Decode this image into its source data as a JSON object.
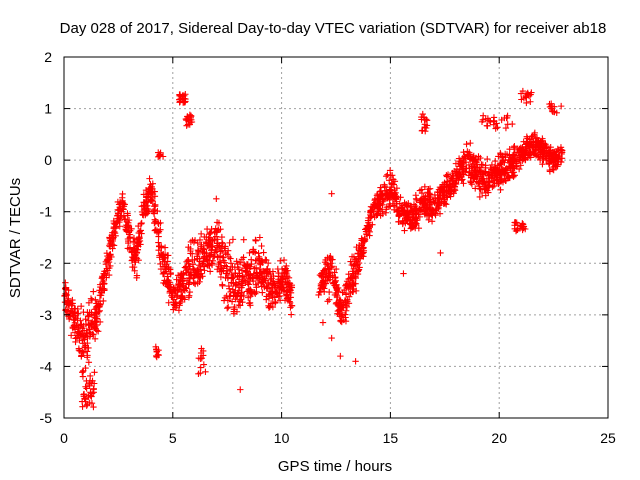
{
  "chart_data": {
    "type": "scatter",
    "title": "Day 028 of 2017, Sidereal Day-to-day VTEC variation (SDTVAR) for receiver ab18",
    "xlabel": "GPS time / hours",
    "ylabel": "SDTVAR / TECUs",
    "xlim": [
      0,
      25
    ],
    "ylim": [
      -5,
      2
    ],
    "xticks": [
      0,
      5,
      10,
      15,
      20,
      25
    ],
    "yticks": [
      -5,
      -4,
      -3,
      -2,
      -1,
      0,
      1,
      2
    ],
    "grid": true,
    "marker": "+",
    "color": "#ff0000",
    "series": [
      {
        "name": "SDTVAR",
        "trend_x": [
          0.0,
          0.3,
          0.6,
          0.9,
          1.2,
          1.5,
          1.8,
          2.1,
          2.4,
          2.7,
          3.0,
          3.3,
          3.6,
          4.0,
          4.3,
          4.6,
          5.0,
          5.4,
          5.8,
          6.2,
          6.6,
          7.0,
          7.5,
          8.0,
          8.5,
          9.0,
          9.5,
          10.0,
          10.5,
          11.8,
          12.3,
          12.7,
          13.0,
          13.5,
          14.0,
          14.5,
          15.0,
          15.5,
          16.0,
          16.5,
          17.0,
          17.5,
          18.0,
          18.5,
          19.0,
          19.5,
          20.0,
          20.5,
          21.0,
          21.5,
          22.0,
          22.5,
          22.9
        ],
        "trend_y": [
          -2.6,
          -3.0,
          -3.2,
          -3.4,
          -3.3,
          -3.0,
          -2.4,
          -1.8,
          -1.2,
          -0.8,
          -1.5,
          -2.0,
          -1.0,
          -0.6,
          -1.4,
          -2.0,
          -2.7,
          -2.5,
          -2.2,
          -2.0,
          -1.8,
          -1.6,
          -2.3,
          -2.5,
          -2.2,
          -2.1,
          -2.5,
          -2.3,
          -2.6,
          -2.4,
          -2.0,
          -3.0,
          -2.6,
          -2.0,
          -1.2,
          -0.8,
          -0.6,
          -1.0,
          -1.1,
          -0.8,
          -0.9,
          -0.6,
          -0.4,
          0.0,
          -0.3,
          -0.4,
          -0.2,
          -0.1,
          0.1,
          0.3,
          0.2,
          0.0,
          0.1
        ],
        "spread": [
          0.45,
          0.5,
          0.55,
          0.8,
          0.9,
          0.6,
          0.5,
          0.5,
          0.4,
          0.3,
          0.5,
          0.6,
          0.4,
          0.4,
          0.7,
          0.6,
          0.5,
          0.6,
          0.8,
          0.8,
          0.7,
          0.7,
          1.0,
          1.0,
          0.9,
          0.7,
          0.7,
          0.6,
          0.6,
          0.4,
          0.5,
          0.6,
          0.6,
          0.5,
          0.4,
          0.4,
          0.5,
          0.5,
          0.4,
          0.5,
          0.4,
          0.4,
          0.4,
          0.5,
          0.5,
          0.5,
          0.5,
          0.4,
          0.4,
          0.4,
          0.4,
          0.3,
          0.3
        ],
        "clusters": [
          {
            "x": [
              0.8,
              1.4
            ],
            "y": [
              -4.8,
              -4.0
            ],
            "n": 40
          },
          {
            "x": [
              5.3,
              5.6
            ],
            "y": [
              1.1,
              1.3
            ],
            "n": 22
          },
          {
            "x": [
              5.6,
              5.9
            ],
            "y": [
              0.6,
              0.9
            ],
            "n": 18
          },
          {
            "x": [
              4.2,
              4.5
            ],
            "y": [
              -4.0,
              -3.6
            ],
            "n": 10
          },
          {
            "x": [
              6.1,
              6.5
            ],
            "y": [
              -4.2,
              -3.6
            ],
            "n": 12
          },
          {
            "x": [
              16.4,
              16.7
            ],
            "y": [
              0.5,
              0.9
            ],
            "n": 15
          },
          {
            "x": [
              19.2,
              20.4
            ],
            "y": [
              0.6,
              0.9
            ],
            "n": 25
          },
          {
            "x": [
              20.6,
              21.2
            ],
            "y": [
              -1.4,
              -1.2
            ],
            "n": 20
          },
          {
            "x": [
              21.0,
              21.5
            ],
            "y": [
              1.1,
              1.35
            ],
            "n": 15
          },
          {
            "x": [
              22.3,
              22.9
            ],
            "y": [
              0.9,
              1.1
            ],
            "n": 14
          },
          {
            "x": [
              4.3,
              4.6
            ],
            "y": [
              0.0,
              0.2
            ],
            "n": 8
          }
        ],
        "outliers": [
          [
            7.0,
            -0.75
          ],
          [
            8.1,
            -4.45
          ],
          [
            9.0,
            -1.5
          ],
          [
            11.9,
            -3.15
          ],
          [
            12.3,
            -3.45
          ],
          [
            12.3,
            -0.65
          ],
          [
            12.7,
            -3.8
          ],
          [
            13.4,
            -3.9
          ],
          [
            15.6,
            -2.2
          ],
          [
            15.8,
            -0.9
          ],
          [
            17.3,
            -1.8
          ],
          [
            18.7,
            -0.3
          ],
          [
            20.6,
            0.7
          ]
        ]
      }
    ]
  }
}
